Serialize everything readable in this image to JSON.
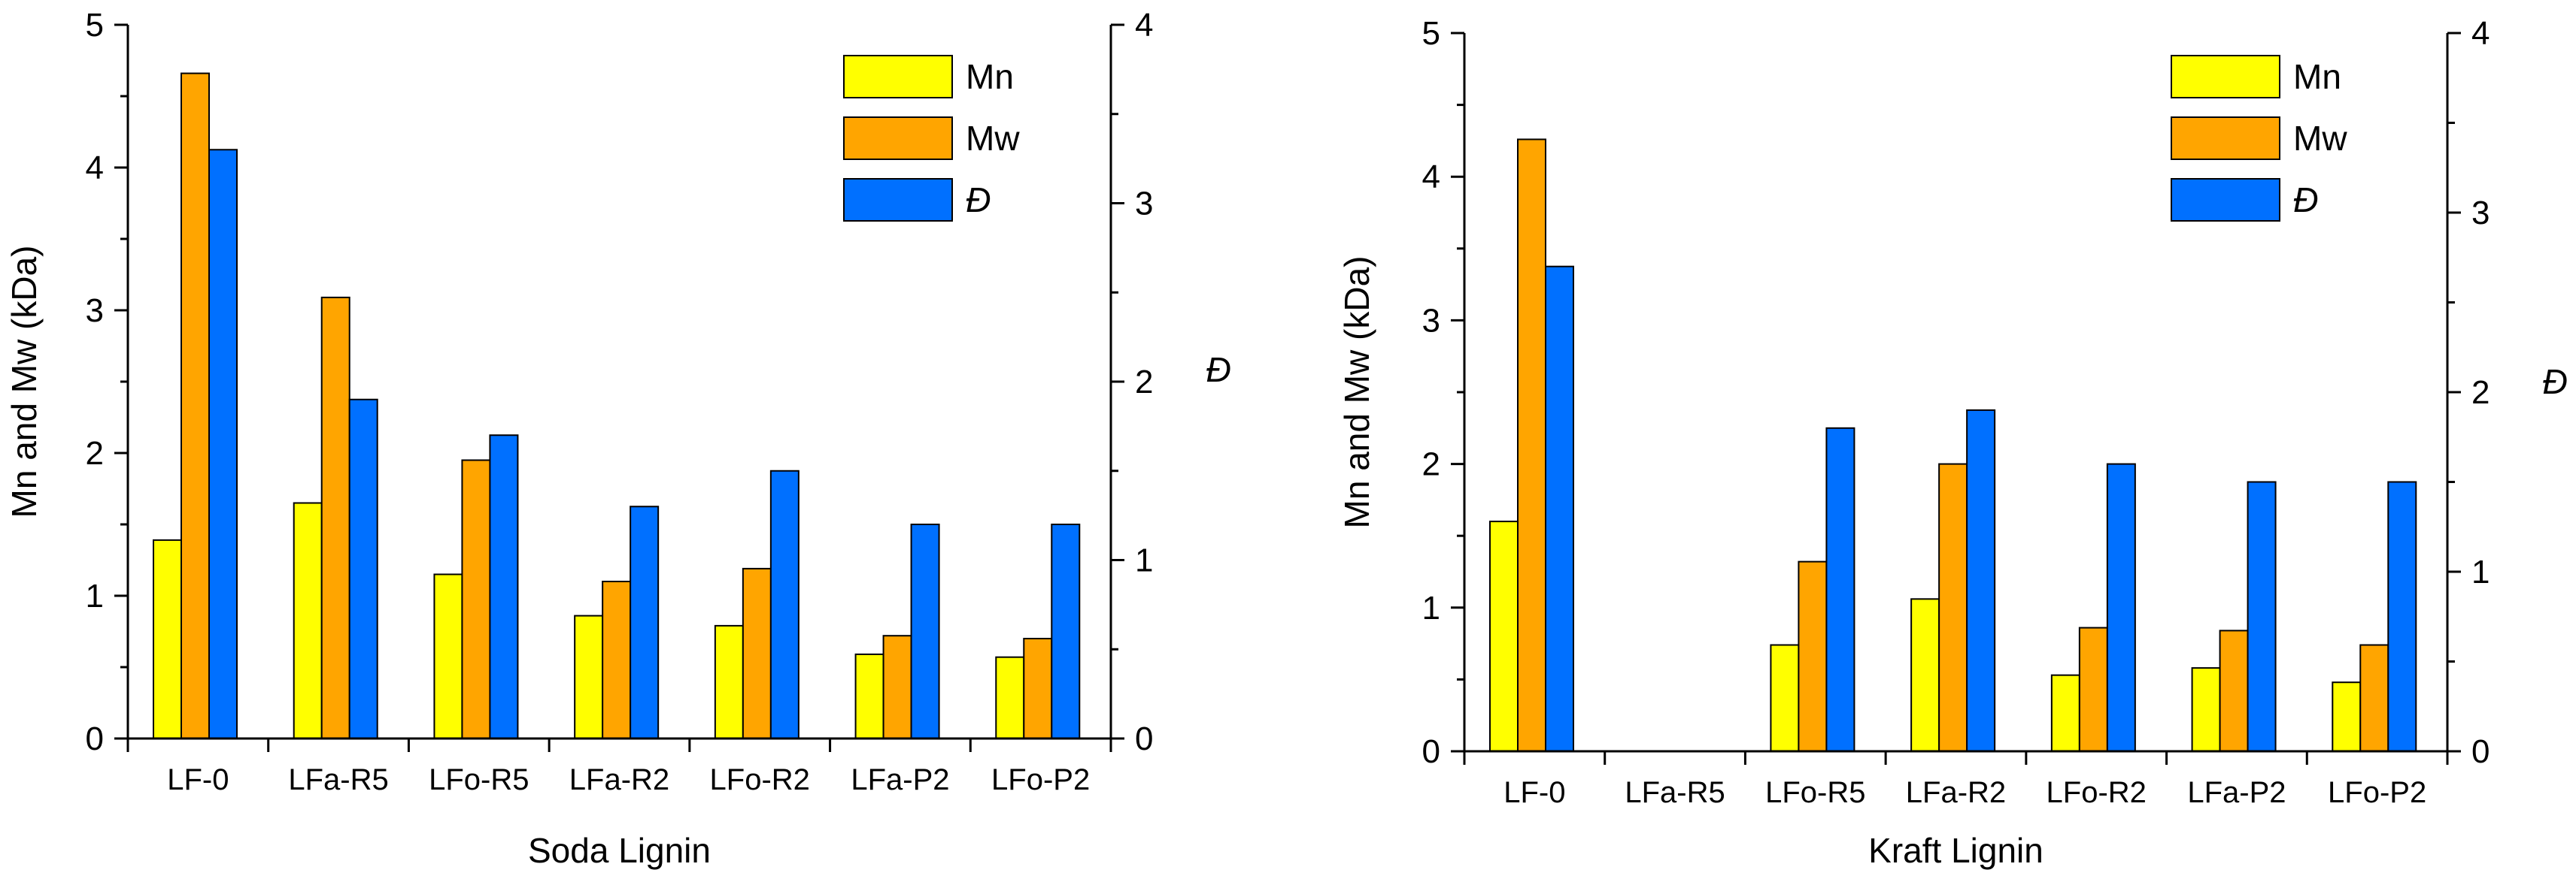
{
  "chart_data": [
    {
      "type": "bar",
      "title": "",
      "xlabel": "Soda Lignin",
      "ylabel": "Mn and Mw (kDa)",
      "y2label": "Đ",
      "ylim": [
        0,
        5
      ],
      "y2lim": [
        0,
        4
      ],
      "yticks": [
        "0",
        "1",
        "2",
        "3",
        "4",
        "5"
      ],
      "y2ticks": [
        "0",
        "1",
        "2",
        "3",
        "4"
      ],
      "categories": [
        "LF-0",
        "LFa-R5",
        "LFo-R5",
        "LFa-R2",
        "LFo-R2",
        "LFa-P2",
        "LFo-P2"
      ],
      "series": [
        {
          "name": "Mn",
          "axis": "left",
          "color": "#FFFF00",
          "values": [
            1.39,
            1.65,
            1.15,
            0.86,
            0.79,
            0.59,
            0.57
          ]
        },
        {
          "name": "Mw",
          "axis": "left",
          "color": "#FFA500",
          "values": [
            4.66,
            3.09,
            1.95,
            1.1,
            1.19,
            0.72,
            0.7
          ]
        },
        {
          "name": "Đ",
          "axis": "right",
          "color": "#0070FF",
          "values": [
            3.3,
            1.9,
            1.7,
            1.3,
            1.5,
            1.2,
            1.2
          ]
        }
      ],
      "legend_position": "top-right"
    },
    {
      "type": "bar",
      "title": "",
      "xlabel": "Kraft Lignin",
      "ylabel": "Mn and Mw  (kDa)",
      "y2label": "Đ",
      "ylim": [
        0,
        5
      ],
      "y2lim": [
        0,
        4
      ],
      "yticks": [
        "0",
        "1",
        "2",
        "3",
        "4",
        "5"
      ],
      "y2ticks": [
        "0",
        "1",
        "2",
        "3",
        "4"
      ],
      "categories": [
        "LF-0",
        "LFa-R5",
        "LFo-R5",
        "LFa-R2",
        "LFo-R2",
        "LFa-P2",
        "LFo-P2"
      ],
      "series": [
        {
          "name": "Mn",
          "axis": "left",
          "color": "#FFFF00",
          "values": [
            1.6,
            0,
            0.74,
            1.06,
            0.53,
            0.58,
            0.48
          ]
        },
        {
          "name": "Mw",
          "axis": "left",
          "color": "#FFA500",
          "values": [
            4.26,
            0,
            1.32,
            2.0,
            0.86,
            0.84,
            0.74
          ]
        },
        {
          "name": "Đ",
          "axis": "right",
          "color": "#0070FF",
          "values": [
            2.7,
            0,
            1.8,
            1.9,
            1.6,
            1.5,
            1.5
          ]
        }
      ],
      "legend_position": "top-right"
    }
  ]
}
